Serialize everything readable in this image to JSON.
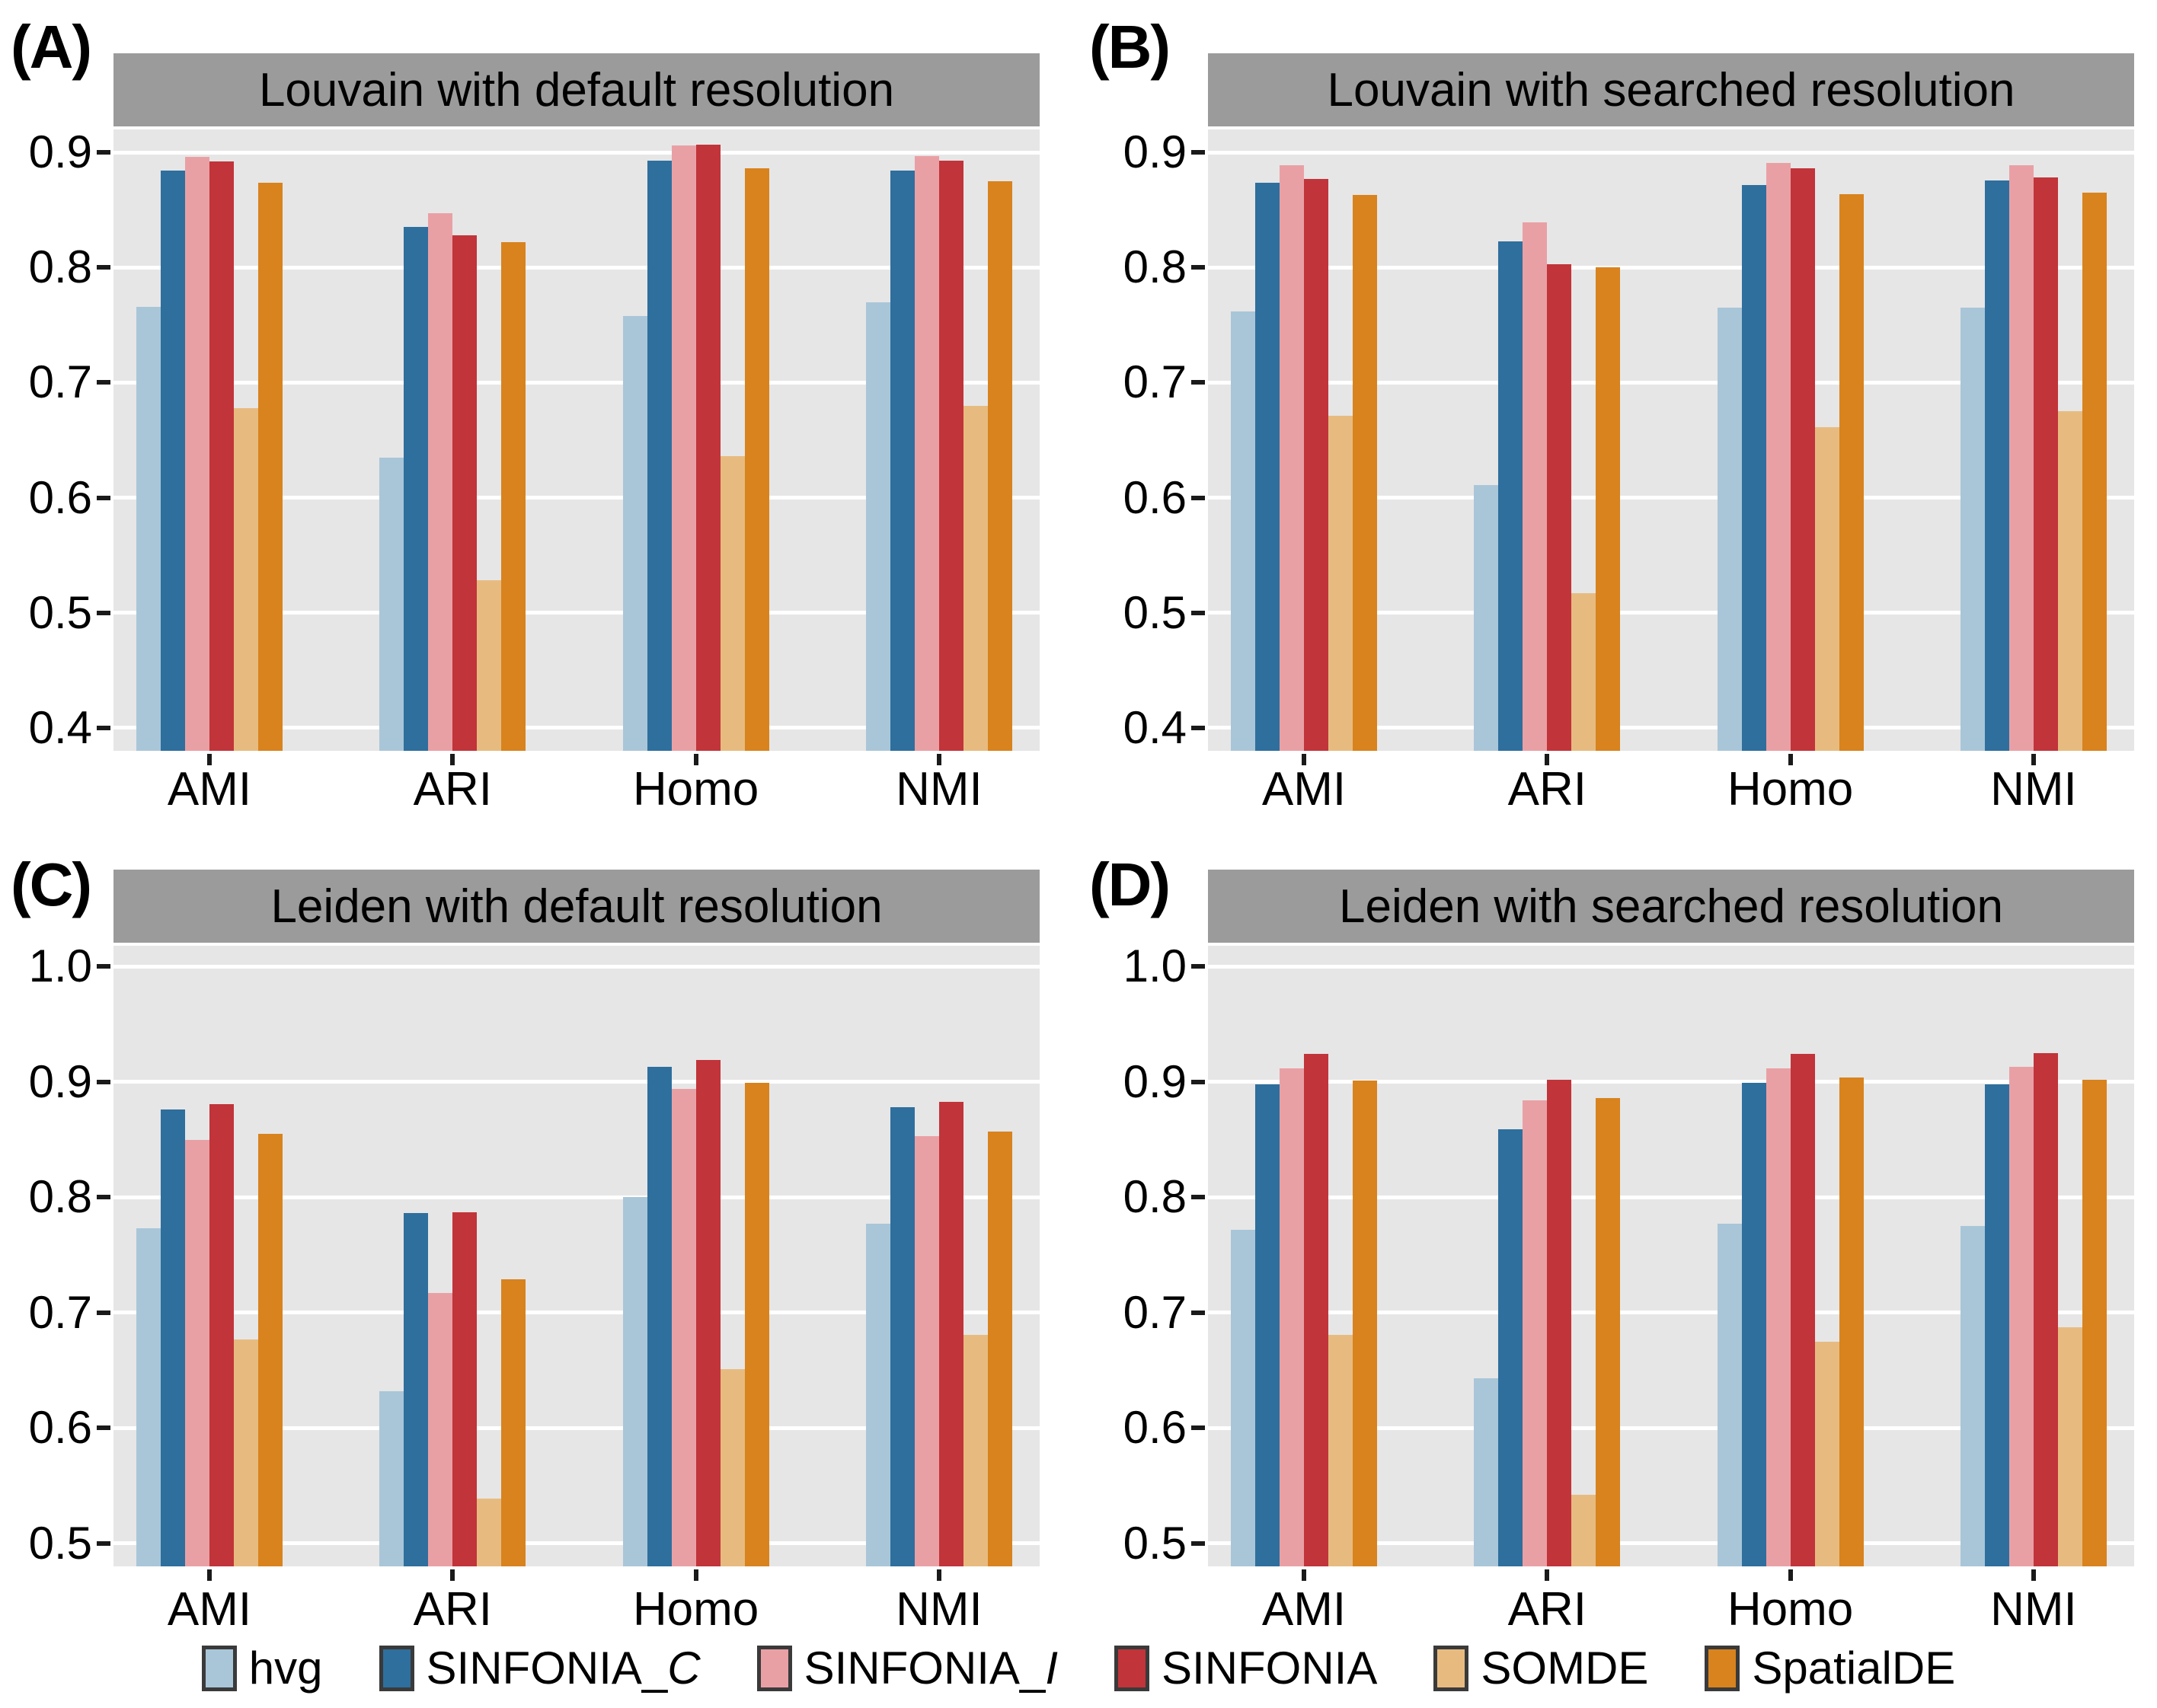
{
  "chart_data": [
    {
      "type": "bar",
      "panel_label": "(A)",
      "title": "Louvain with default resolution",
      "categories": [
        "AMI",
        "ARI",
        "Homo",
        "NMI"
      ],
      "series": [
        {
          "name": "hvg",
          "values": [
            0.766,
            0.635,
            0.758,
            0.77
          ]
        },
        {
          "name": "SINFONIA_C",
          "values": [
            0.884,
            0.835,
            0.893,
            0.884
          ]
        },
        {
          "name": "SINFONIA_I",
          "values": [
            0.896,
            0.847,
            0.906,
            0.897
          ]
        },
        {
          "name": "SINFONIA",
          "values": [
            0.892,
            0.828,
            0.907,
            0.893
          ]
        },
        {
          "name": "SOMDE",
          "values": [
            0.678,
            0.528,
            0.636,
            0.68
          ]
        },
        {
          "name": "SpatialDE",
          "values": [
            0.874,
            0.822,
            0.886,
            0.875
          ]
        }
      ],
      "yticks": [
        0.4,
        0.5,
        0.6,
        0.7,
        0.8,
        0.9
      ],
      "ylim": [
        0.38,
        0.92
      ],
      "xlabel": "",
      "ylabel": "",
      "grid": "major-horizontal-white",
      "legend_position": "bottom-shared"
    },
    {
      "type": "bar",
      "panel_label": "(B)",
      "title": "Louvain with searched resolution",
      "categories": [
        "AMI",
        "ARI",
        "Homo",
        "NMI"
      ],
      "series": [
        {
          "name": "hvg",
          "values": [
            0.762,
            0.611,
            0.765,
            0.765
          ]
        },
        {
          "name": "SINFONIA_C",
          "values": [
            0.874,
            0.823,
            0.872,
            0.876
          ]
        },
        {
          "name": "SINFONIA_I",
          "values": [
            0.889,
            0.839,
            0.891,
            0.889
          ]
        },
        {
          "name": "SINFONIA",
          "values": [
            0.877,
            0.803,
            0.886,
            0.878
          ]
        },
        {
          "name": "SOMDE",
          "values": [
            0.671,
            0.517,
            0.661,
            0.675
          ]
        },
        {
          "name": "SpatialDE",
          "values": [
            0.863,
            0.8,
            0.864,
            0.865
          ]
        }
      ],
      "yticks": [
        0.4,
        0.5,
        0.6,
        0.7,
        0.8,
        0.9
      ],
      "ylim": [
        0.38,
        0.92
      ],
      "xlabel": "",
      "ylabel": "",
      "grid": "major-horizontal-white",
      "legend_position": "bottom-shared"
    },
    {
      "type": "bar",
      "panel_label": "(C)",
      "title": "Leiden with default resolution",
      "categories": [
        "AMI",
        "ARI",
        "Homo",
        "NMI"
      ],
      "series": [
        {
          "name": "hvg",
          "values": [
            0.773,
            0.632,
            0.8,
            0.777
          ]
        },
        {
          "name": "SINFONIA_C",
          "values": [
            0.876,
            0.786,
            0.913,
            0.878
          ]
        },
        {
          "name": "SINFONIA_I",
          "values": [
            0.85,
            0.717,
            0.894,
            0.853
          ]
        },
        {
          "name": "SINFONIA",
          "values": [
            0.881,
            0.787,
            0.919,
            0.883
          ]
        },
        {
          "name": "SOMDE",
          "values": [
            0.677,
            0.539,
            0.651,
            0.681
          ]
        },
        {
          "name": "SpatialDE",
          "values": [
            0.855,
            0.729,
            0.899,
            0.857
          ]
        }
      ],
      "yticks": [
        0.5,
        0.6,
        0.7,
        0.8,
        0.9,
        1.0
      ],
      "ylim": [
        0.48,
        1.018
      ],
      "xlabel": "",
      "ylabel": "",
      "grid": "major-horizontal-white",
      "legend_position": "bottom-shared"
    },
    {
      "type": "bar",
      "panel_label": "(D)",
      "title": "Leiden with searched resolution",
      "categories": [
        "AMI",
        "ARI",
        "Homo",
        "NMI"
      ],
      "series": [
        {
          "name": "hvg",
          "values": [
            0.772,
            0.643,
            0.777,
            0.775
          ]
        },
        {
          "name": "SINFONIA_C",
          "values": [
            0.898,
            0.859,
            0.899,
            0.898
          ]
        },
        {
          "name": "SINFONIA_I",
          "values": [
            0.912,
            0.884,
            0.912,
            0.913
          ]
        },
        {
          "name": "SINFONIA",
          "values": [
            0.924,
            0.902,
            0.924,
            0.925
          ]
        },
        {
          "name": "SOMDE",
          "values": [
            0.681,
            0.542,
            0.675,
            0.687
          ]
        },
        {
          "name": "SpatialDE",
          "values": [
            0.901,
            0.886,
            0.904,
            0.902
          ]
        }
      ],
      "yticks": [
        0.5,
        0.6,
        0.7,
        0.8,
        0.9,
        1.0
      ],
      "ylim": [
        0.48,
        1.018
      ],
      "xlabel": "",
      "ylabel": "",
      "grid": "major-horizontal-white",
      "legend_position": "bottom-shared"
    }
  ],
  "legend": {
    "items": [
      {
        "name": "hvg",
        "label_base": "hvg",
        "italic_suffix": "",
        "color": "#a9c6d8"
      },
      {
        "name": "SINFONIA_C",
        "label_base": "SINFONIA_",
        "italic_suffix": "C",
        "color": "#2e6f9e"
      },
      {
        "name": "SINFONIA_I",
        "label_base": "SINFONIA_",
        "italic_suffix": "I",
        "color": "#e9a0a5"
      },
      {
        "name": "SINFONIA",
        "label_base": "SINFONIA",
        "italic_suffix": "",
        "color": "#c1343a"
      },
      {
        "name": "SOMDE",
        "label_base": "SOMDE",
        "italic_suffix": "",
        "color": "#e7bb80"
      },
      {
        "name": "SpatialDE",
        "label_base": "SpatialDE",
        "italic_suffix": "",
        "color": "#d8831e"
      }
    ],
    "swatch_border_color": "#3a3a3a"
  },
  "style_colors": {
    "panel_background": "#e6e6e6",
    "strip_background": "#9b9b9b",
    "gridline": "#ffffff",
    "text": "#000000"
  }
}
